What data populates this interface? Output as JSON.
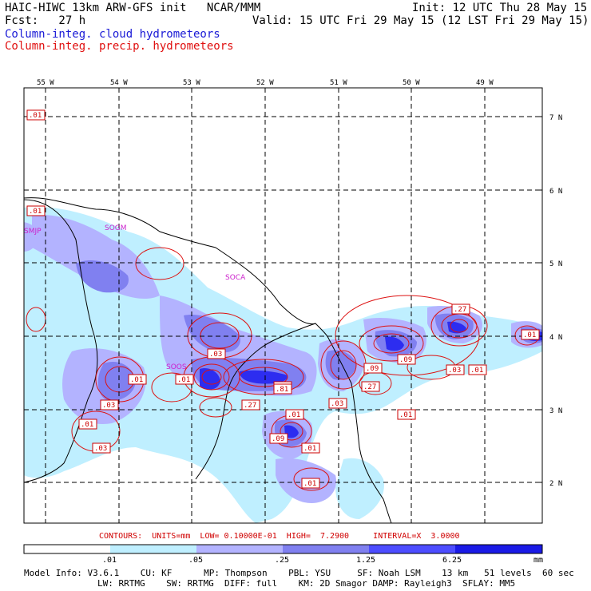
{
  "header": {
    "line1_left": "HAIC-HIWC 13km ARW-GFS init   NCAR/MMM",
    "line1_right": "Init: 12 UTC Thu 28 May 15",
    "line2_left": "Fcst:   27 h",
    "line2_right": "Valid: 15 UTC Fri 29 May 15 (12 LST Fri 29 May 15)",
    "line3": "Column-integ. cloud hydrometeors",
    "line4": "Column-integ. precip. hydrometeors"
  },
  "lon_labels": [
    "55 W",
    "54 W",
    "53 W",
    "52 W",
    "51 W",
    "50 W",
    "49 W"
  ],
  "lat_labels": [
    "7 N",
    "6 N",
    "5 N",
    "4 N",
    "3 N",
    "2 N"
  ],
  "stations": [
    "SMJP",
    "SOCA",
    "SOGM",
    "SOOS"
  ],
  "contour_labels": [
    ".01",
    ".01",
    ".01",
    ".03",
    ".01",
    ".03",
    ".01",
    ".03",
    ".01",
    ".27",
    ".09",
    ".81",
    ".27",
    ".03",
    ".09",
    ".27",
    ".03",
    ".01",
    ".01",
    ".01",
    ".01",
    ".01",
    ".09",
    ".81"
  ],
  "contour_info": "CONTOURS:  UNITS=mm  LOW= 0.10000E-01  HIGH=  7.2900     INTERVAL=X  3.0000",
  "colorbar": {
    "ticks": [
      ".01",
      ".05",
      ".25",
      "1.25",
      "6.25"
    ],
    "units": "mm",
    "colors": [
      "#ffffff",
      "#bfefff",
      "#b3b3ff",
      "#8080f0",
      "#4d4dff",
      "#1a1ae6"
    ]
  },
  "model_info": {
    "line1": "Model Info: V3.6.1    CU: KF      MP: Thompson    PBL: YSU     SF: Noah LSM    13 km   51 levels  60 sec",
    "line2": "LW: RRTMG    SW: RRTMG  DIFF: full    KM: 2D Smagor DAMP: Rayleigh3  SFLAY: MM5"
  }
}
